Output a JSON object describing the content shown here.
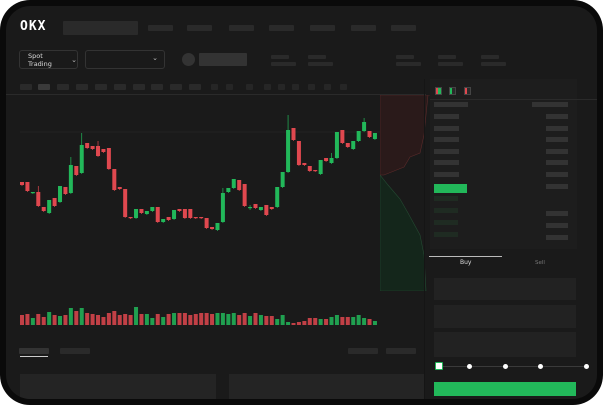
{
  "header": {
    "logo": "OKX"
  },
  "toolbar": {
    "market_selector": "Spot Trading",
    "market_icon": "chevron-down-icon",
    "pair_icon": "chevron-down-icon"
  },
  "order_panel": {
    "tabs": [
      "Buy",
      "Sell"
    ],
    "active_tab": "Buy",
    "slider_value": 0
  },
  "colors": {
    "up": "#22b85a",
    "down": "#e0484f",
    "background": "#1a1a1a"
  },
  "chart_data": {
    "type": "candlestick",
    "candles": [
      [
        118,
        115,
        118,
        115
      ],
      [
        118,
        109,
        118,
        109
      ],
      [
        107,
        108,
        108,
        107
      ],
      [
        108,
        94,
        114,
        94
      ],
      [
        93,
        89,
        93,
        89
      ],
      [
        87,
        100,
        100,
        87
      ],
      [
        102,
        94,
        102,
        94
      ],
      [
        98,
        114,
        114,
        98
      ],
      [
        113,
        106,
        113,
        106
      ],
      [
        107,
        135,
        143,
        107
      ],
      [
        134,
        125,
        134,
        125
      ],
      [
        127,
        155,
        167,
        127
      ],
      [
        157,
        152,
        157,
        152
      ],
      [
        154,
        151,
        154,
        151
      ],
      [
        154,
        144,
        159,
        144
      ],
      [
        151,
        148,
        151,
        148
      ],
      [
        152,
        131,
        152,
        131
      ],
      [
        131,
        110,
        131,
        110
      ],
      [
        113,
        111,
        113,
        111
      ],
      [
        111,
        83,
        111,
        83
      ],
      [
        83,
        82,
        83,
        82
      ],
      [
        82,
        91,
        91,
        82
      ],
      [
        91,
        87,
        91,
        87
      ],
      [
        86,
        89,
        89,
        86
      ],
      [
        89,
        93,
        93,
        89
      ],
      [
        93,
        78,
        93,
        78
      ],
      [
        78,
        81,
        81,
        78
      ],
      [
        83,
        80,
        83,
        80
      ],
      [
        81,
        90,
        90,
        81
      ],
      [
        91,
        89,
        91,
        89
      ],
      [
        91,
        82,
        91,
        82
      ],
      [
        91,
        82,
        91,
        82
      ],
      [
        83,
        82,
        83,
        82
      ],
      [
        83,
        82,
        83,
        82
      ],
      [
        82,
        72,
        82,
        72
      ],
      [
        73,
        71,
        73,
        71
      ],
      [
        70,
        77,
        77,
        70
      ],
      [
        78,
        107,
        112,
        78
      ],
      [
        108,
        112,
        112,
        108
      ],
      [
        112,
        121,
        121,
        112
      ],
      [
        120,
        110,
        120,
        110
      ],
      [
        116,
        94,
        116,
        94
      ],
      [
        93,
        93,
        95,
        91
      ],
      [
        96,
        92,
        96,
        92
      ],
      [
        90,
        93,
        93,
        90
      ],
      [
        95,
        85,
        95,
        85
      ],
      [
        93,
        91,
        93,
        91
      ],
      [
        93,
        113,
        113,
        93
      ],
      [
        113,
        128,
        128,
        113
      ],
      [
        128,
        170,
        185,
        128
      ],
      [
        172,
        160,
        172,
        160
      ],
      [
        159,
        135,
        159,
        135
      ],
      [
        137,
        135,
        137,
        135
      ],
      [
        134,
        129,
        134,
        129
      ],
      [
        130,
        129,
        130,
        129
      ],
      [
        126,
        140,
        140,
        126
      ],
      [
        142,
        139,
        142,
        139
      ],
      [
        137,
        142,
        147,
        137
      ],
      [
        142,
        168,
        168,
        142
      ],
      [
        170,
        157,
        170,
        157
      ],
      [
        157,
        153,
        157,
        153
      ],
      [
        151,
        159,
        159,
        151
      ],
      [
        159,
        169,
        169,
        159
      ],
      [
        169,
        178,
        182,
        169
      ],
      [
        169,
        163,
        169,
        163
      ],
      [
        161,
        167,
        167,
        161
      ]
    ],
    "volume": [
      10,
      11,
      7,
      11,
      8,
      13,
      10,
      9,
      10,
      17,
      14,
      17,
      12,
      11,
      10,
      8,
      12,
      14,
      10,
      11,
      10,
      18,
      11,
      11,
      7,
      11,
      8,
      11,
      12,
      12,
      12,
      10,
      11,
      12,
      12,
      11,
      12,
      12,
      11,
      12,
      10,
      12,
      9,
      12,
      10,
      9,
      9,
      6,
      10,
      3,
      2,
      3,
      4,
      7,
      7,
      6,
      6,
      8,
      10,
      8,
      8,
      8,
      10,
      7,
      6,
      4
    ],
    "grid": false
  }
}
